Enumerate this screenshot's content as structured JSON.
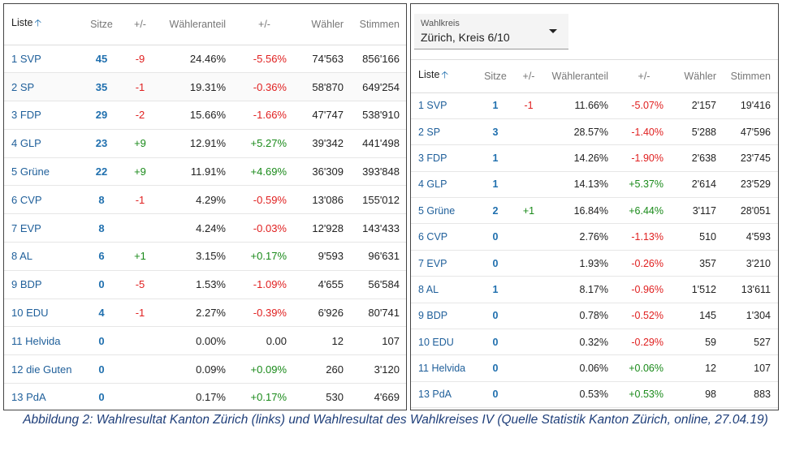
{
  "left_table": {
    "headers": [
      "Liste",
      "Sitze",
      "+/-",
      "Wähleranteil",
      "+/-",
      "Wähler",
      "Stimmen"
    ],
    "rows": [
      {
        "liste": "1 SVP",
        "sitze": "45",
        "sitze_delta": "-9",
        "anteil": "24.46%",
        "anteil_delta": "-5.56%",
        "waehler": "74'563",
        "stimmen": "856'166"
      },
      {
        "liste": "2 SP",
        "sitze": "35",
        "sitze_delta": "-1",
        "anteil": "19.31%",
        "anteil_delta": "-0.36%",
        "waehler": "58'870",
        "stimmen": "649'254"
      },
      {
        "liste": "3 FDP",
        "sitze": "29",
        "sitze_delta": "-2",
        "anteil": "15.66%",
        "anteil_delta": "-1.66%",
        "waehler": "47'747",
        "stimmen": "538'910"
      },
      {
        "liste": "4 GLP",
        "sitze": "23",
        "sitze_delta": "+9",
        "anteil": "12.91%",
        "anteil_delta": "+5.27%",
        "waehler": "39'342",
        "stimmen": "441'498"
      },
      {
        "liste": "5 Grüne",
        "sitze": "22",
        "sitze_delta": "+9",
        "anteil": "11.91%",
        "anteil_delta": "+4.69%",
        "waehler": "36'309",
        "stimmen": "393'848"
      },
      {
        "liste": "6 CVP",
        "sitze": "8",
        "sitze_delta": "-1",
        "anteil": "4.29%",
        "anteil_delta": "-0.59%",
        "waehler": "13'086",
        "stimmen": "155'012"
      },
      {
        "liste": "7 EVP",
        "sitze": "8",
        "sitze_delta": "",
        "anteil": "4.24%",
        "anteil_delta": "-0.03%",
        "waehler": "12'928",
        "stimmen": "143'433"
      },
      {
        "liste": "8 AL",
        "sitze": "6",
        "sitze_delta": "+1",
        "anteil": "3.15%",
        "anteil_delta": "+0.17%",
        "waehler": "9'593",
        "stimmen": "96'631"
      },
      {
        "liste": "9 BDP",
        "sitze": "0",
        "sitze_delta": "-5",
        "anteil": "1.53%",
        "anteil_delta": "-1.09%",
        "waehler": "4'655",
        "stimmen": "56'584"
      },
      {
        "liste": "10 EDU",
        "sitze": "4",
        "sitze_delta": "-1",
        "anteil": "2.27%",
        "anteil_delta": "-0.39%",
        "waehler": "6'926",
        "stimmen": "80'741"
      },
      {
        "liste": "11 Helvida",
        "sitze": "0",
        "sitze_delta": "",
        "anteil": "0.00%",
        "anteil_delta": "0.00",
        "waehler": "12",
        "stimmen": "107"
      },
      {
        "liste": "12 die Guten",
        "sitze": "0",
        "sitze_delta": "",
        "anteil": "0.09%",
        "anteil_delta": "+0.09%",
        "waehler": "260",
        "stimmen": "3'120"
      },
      {
        "liste": "13 PdA",
        "sitze": "0",
        "sitze_delta": "",
        "anteil": "0.17%",
        "anteil_delta": "+0.17%",
        "waehler": "530",
        "stimmen": "4'669"
      }
    ]
  },
  "right_panel": {
    "dropdown_label": "Wahlkreis",
    "dropdown_value": "Zürich, Kreis 6/10",
    "headers": [
      "Liste",
      "Sitze",
      "+/-",
      "Wähleranteil",
      "+/-",
      "Wähler",
      "Stimmen"
    ],
    "rows": [
      {
        "liste": "1 SVP",
        "sitze": "1",
        "sitze_delta": "-1",
        "anteil": "11.66%",
        "anteil_delta": "-5.07%",
        "waehler": "2'157",
        "stimmen": "19'416"
      },
      {
        "liste": "2 SP",
        "sitze": "3",
        "sitze_delta": "",
        "anteil": "28.57%",
        "anteil_delta": "-1.40%",
        "waehler": "5'288",
        "stimmen": "47'596"
      },
      {
        "liste": "3 FDP",
        "sitze": "1",
        "sitze_delta": "",
        "anteil": "14.26%",
        "anteil_delta": "-1.90%",
        "waehler": "2'638",
        "stimmen": "23'745"
      },
      {
        "liste": "4 GLP",
        "sitze": "1",
        "sitze_delta": "",
        "anteil": "14.13%",
        "anteil_delta": "+5.37%",
        "waehler": "2'614",
        "stimmen": "23'529"
      },
      {
        "liste": "5 Grüne",
        "sitze": "2",
        "sitze_delta": "+1",
        "anteil": "16.84%",
        "anteil_delta": "+6.44%",
        "waehler": "3'117",
        "stimmen": "28'051"
      },
      {
        "liste": "6 CVP",
        "sitze": "0",
        "sitze_delta": "",
        "anteil": "2.76%",
        "anteil_delta": "-1.13%",
        "waehler": "510",
        "stimmen": "4'593"
      },
      {
        "liste": "7 EVP",
        "sitze": "0",
        "sitze_delta": "",
        "anteil": "1.93%",
        "anteil_delta": "-0.26%",
        "waehler": "357",
        "stimmen": "3'210"
      },
      {
        "liste": "8 AL",
        "sitze": "1",
        "sitze_delta": "",
        "anteil": "8.17%",
        "anteil_delta": "-0.96%",
        "waehler": "1'512",
        "stimmen": "13'611"
      },
      {
        "liste": "9 BDP",
        "sitze": "0",
        "sitze_delta": "",
        "anteil": "0.78%",
        "anteil_delta": "-0.52%",
        "waehler": "145",
        "stimmen": "1'304"
      },
      {
        "liste": "10 EDU",
        "sitze": "0",
        "sitze_delta": "",
        "anteil": "0.32%",
        "anteil_delta": "-0.29%",
        "waehler": "59",
        "stimmen": "527"
      },
      {
        "liste": "11 Helvida",
        "sitze": "0",
        "sitze_delta": "",
        "anteil": "0.06%",
        "anteil_delta": "+0.06%",
        "waehler": "12",
        "stimmen": "107"
      },
      {
        "liste": "13 PdA",
        "sitze": "0",
        "sitze_delta": "",
        "anteil": "0.53%",
        "anteil_delta": "+0.53%",
        "waehler": "98",
        "stimmen": "883"
      }
    ]
  },
  "caption": "Abbildung 2: Wahlresultat Kanton Zürich (links) und Wahlresultat des Wahlkreises IV (Quelle Statistik Kanton Zürich, online, 27.04.19)",
  "colors": {
    "positive": "#1a8a1a",
    "negative": "#e02020",
    "link": "#1f5f9a"
  }
}
